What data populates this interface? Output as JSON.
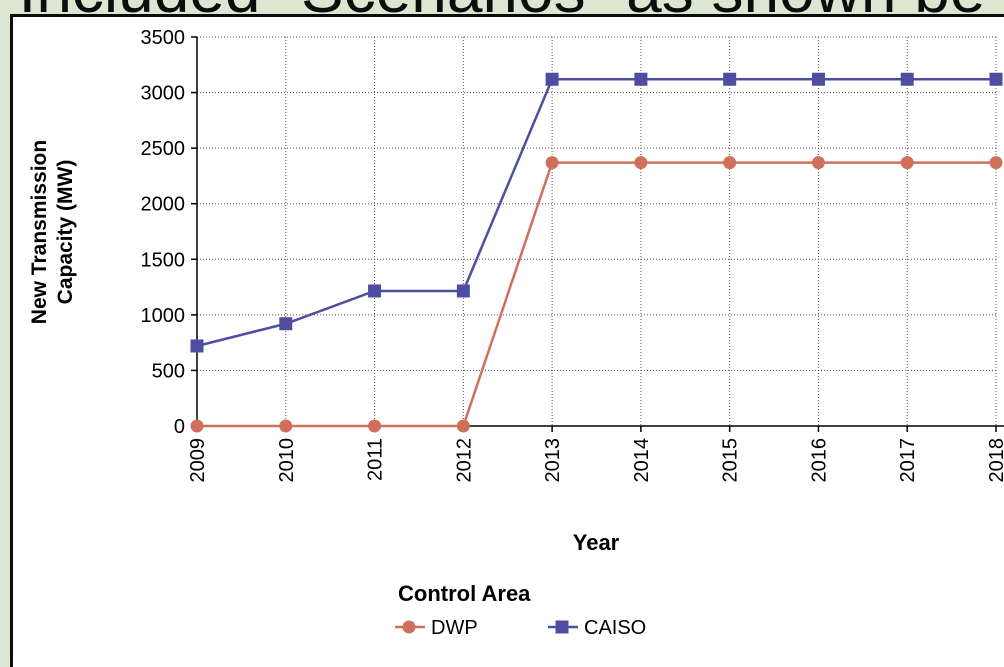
{
  "page_title_fragment": "Included \"Scenarios\" as shown be",
  "chart_data": {
    "type": "line",
    "title": "",
    "xlabel": "Year",
    "ylabel": "New Transmission Capacity (MW)",
    "ylabel_lines": [
      "New Transmission",
      "Capacity (MW)"
    ],
    "ylim": [
      0,
      3500
    ],
    "yticks": [
      0,
      500,
      1000,
      1500,
      2000,
      2500,
      3000,
      3500
    ],
    "categories": [
      "2009",
      "2010",
      "2011",
      "2012",
      "2013",
      "2014",
      "2015",
      "2016",
      "2017",
      "2018"
    ],
    "grid": true,
    "legend": {
      "title": "Control Area",
      "placement": "bottom"
    },
    "series": [
      {
        "name": "DWP",
        "color": "#d0705c",
        "marker": "circle",
        "values": [
          0,
          0,
          0,
          0,
          2370,
          2370,
          2370,
          2370,
          2370,
          2370
        ]
      },
      {
        "name": "CAISO",
        "color": "#4e4ea0",
        "marker": "square",
        "values": [
          720,
          920,
          1215,
          1215,
          3120,
          3120,
          3120,
          3120,
          3120,
          3120
        ]
      }
    ]
  }
}
